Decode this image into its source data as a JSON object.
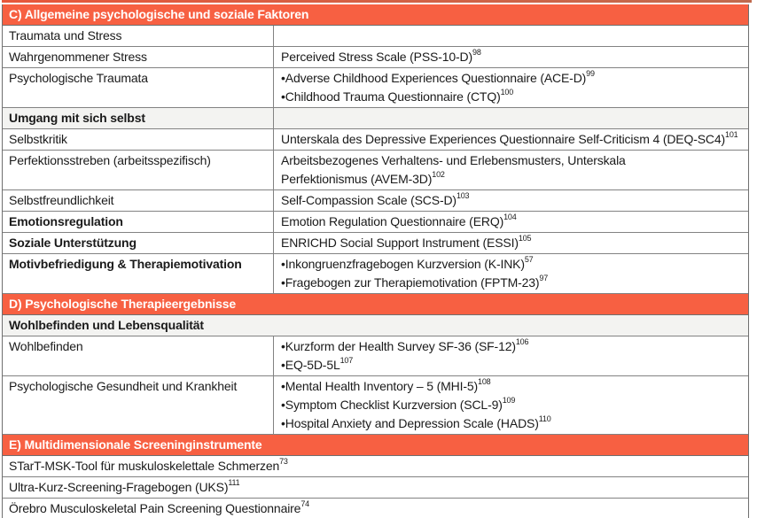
{
  "colors": {
    "accent_orange": "#f76042",
    "section_row_gray": "#f3f3f1",
    "grid_border": "#828282",
    "header_text": "#ffffff",
    "body_text": "#1a1a1a"
  },
  "table": {
    "rows": [
      {
        "kind": "section",
        "label": "C) Allgemeine psychologische und soziale Faktoren"
      },
      {
        "kind": "pair",
        "left": "Traumata und Stress",
        "left_bold": false,
        "right": []
      },
      {
        "kind": "pair",
        "left": "Wahrgenommener Stress",
        "left_bold": false,
        "right": [
          {
            "bullet": false,
            "text": "Perceived Stress Scale (PSS-10-D)",
            "sup": "98"
          }
        ]
      },
      {
        "kind": "pair",
        "left": "Psychologische Traumata",
        "left_bold": false,
        "right": [
          {
            "bullet": true,
            "text": "Adverse Childhood Experiences Questionnaire (ACE-D)",
            "sup": "99"
          },
          {
            "bullet": true,
            "text": "Childhood Trauma Questionnaire (CTQ)",
            "sup": "100"
          }
        ]
      },
      {
        "kind": "pair",
        "left": "Umgang mit sich selbst",
        "left_bold": true,
        "bg": "gray",
        "right": []
      },
      {
        "kind": "pair",
        "left": "Selbstkritik",
        "left_bold": false,
        "right": [
          {
            "bullet": false,
            "text": "Unterskala des Depressive Experiences Questionnaire Self-Criticism 4 (DEQ-SC4)",
            "sup": "101"
          }
        ]
      },
      {
        "kind": "pair",
        "left": "Perfektionsstreben (arbeitsspezifisch)",
        "left_bold": false,
        "right": [
          {
            "bullet": false,
            "text": "Arbeitsbezogenes Verhaltens- und Erlebensmusters, Unterskala\nPerfektionismus (AVEM-3D)",
            "sup": "102"
          }
        ]
      },
      {
        "kind": "pair",
        "left": "Selbstfreundlichkeit",
        "left_bold": false,
        "right": [
          {
            "bullet": false,
            "text": "Self-Compassion Scale (SCS-D)",
            "sup": "103"
          }
        ]
      },
      {
        "kind": "pair",
        "left": "Emotionsregulation",
        "left_bold": true,
        "right": [
          {
            "bullet": false,
            "text": "Emotion Regulation Questionnaire (ERQ)",
            "sup": "104"
          }
        ]
      },
      {
        "kind": "pair",
        "left": "Soziale Unterstützung",
        "left_bold": true,
        "right": [
          {
            "bullet": false,
            "text": "ENRICHD Social Support Instrument (ESSI)",
            "sup": "105"
          }
        ]
      },
      {
        "kind": "pair",
        "left": "Motivbefriedigung & Therapiemotivation",
        "left_bold": true,
        "right": [
          {
            "bullet": true,
            "text": "Inkongruenzfragebogen Kurzversion (K-INK)",
            "sup": "57"
          },
          {
            "bullet": true,
            "text": "Fragebogen zur Therapiemotivation (FPTM-23)",
            "sup": "97"
          }
        ]
      },
      {
        "kind": "section",
        "label": "D) Psychologische Therapieergebnisse"
      },
      {
        "kind": "full",
        "text": "Wohlbefinden und Lebensqualität",
        "bold": true,
        "bg": "gray"
      },
      {
        "kind": "pair",
        "left": "Wohlbefinden",
        "left_bold": false,
        "right": [
          {
            "bullet": true,
            "text": "Kurzform der Health Survey SF-36 (SF-12)",
            "sup": "106"
          },
          {
            "bullet": true,
            "text": "EQ-5D-5L",
            "sup": "107"
          }
        ]
      },
      {
        "kind": "pair",
        "left": "Psychologische Gesundheit und Krankheit",
        "left_bold": false,
        "right": [
          {
            "bullet": true,
            "text": "Mental Health Inventory – 5 (MHI-5)",
            "sup": "108"
          },
          {
            "bullet": true,
            "text": "Symptom Checklist Kurzversion (SCL-9)",
            "sup": "109"
          },
          {
            "bullet": true,
            "text": "Hospital Anxiety and Depression Scale (HADS)",
            "sup": "110"
          }
        ]
      },
      {
        "kind": "section",
        "label": "E) Multidimensionale Screeninginstrumente"
      },
      {
        "kind": "full",
        "text": "STarT-MSK-Tool für muskuloskelettale Schmerzen",
        "sup": "73",
        "bold": false
      },
      {
        "kind": "full",
        "text": "Ultra-Kurz-Screening-Fragebogen (UKS)",
        "sup": "111",
        "bold": false
      },
      {
        "kind": "full",
        "text": "Örebro Musculoskeletal Pain Screening Questionnaire",
        "sup": "74",
        "bold": false
      }
    ]
  }
}
